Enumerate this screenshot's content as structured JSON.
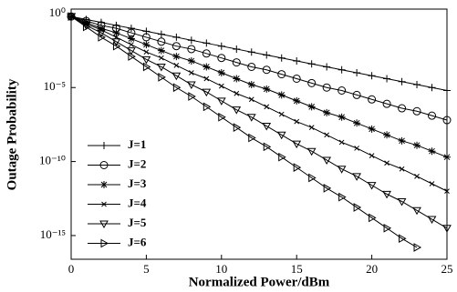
{
  "chart_data": {
    "type": "line",
    "xlabel": "Normalized Power/dBm",
    "ylabel": "Outage Probability",
    "log_y": true,
    "grid": false,
    "legend_loc": "lower left",
    "xlim": [
      0,
      25
    ],
    "xticks": [
      0,
      5,
      10,
      15,
      20,
      25
    ],
    "ylim": [
      2.5e-17,
      2
    ],
    "yticks": [
      {
        "value": 1,
        "label": "10⁰"
      },
      {
        "value": 1e-05,
        "label": "10⁻⁵"
      },
      {
        "value": 1e-10,
        "label": "10⁻¹⁰"
      },
      {
        "value": 1e-15,
        "label": "10⁻¹⁵"
      }
    ],
    "x": [
      0,
      1,
      2,
      3,
      4,
      5,
      6,
      7,
      8,
      9,
      10,
      11,
      12,
      13,
      14,
      15,
      16,
      17,
      18,
      19,
      20,
      21,
      22,
      23,
      24,
      25
    ],
    "series": [
      {
        "name": "J=1",
        "color": "#000000",
        "marker": "plus",
        "values": [
          0.631,
          0.398,
          0.251,
          0.158,
          0.1,
          0.0631,
          0.0398,
          0.0251,
          0.0158,
          0.01,
          0.00631,
          0.00398,
          0.00251,
          0.00158,
          0.001,
          0.000631,
          0.000398,
          0.000251,
          0.000158,
          0.0001,
          6.31e-05,
          3.98e-05,
          2.51e-05,
          1.58e-05,
          1e-05,
          6.31e-06
        ]
      },
      {
        "name": "J=2",
        "color": "#000000",
        "marker": "circle",
        "values": [
          0.631,
          0.316,
          0.158,
          0.1,
          0.0501,
          0.0251,
          0.0126,
          0.00631,
          0.00398,
          0.002,
          0.001,
          0.000501,
          0.000251,
          0.000158,
          7.94e-05,
          3.98e-05,
          2e-05,
          1e-05,
          6.31e-06,
          3.16e-06,
          1.58e-06,
          7.94e-07,
          3.98e-07,
          2.51e-07,
          1.26e-07,
          6.31e-08
        ]
      },
      {
        "name": "J=3",
        "color": "#000000",
        "marker": "star",
        "values": [
          0.631,
          0.251,
          0.1,
          0.0501,
          0.02,
          0.00794,
          0.00316,
          0.00126,
          0.000631,
          0.000251,
          0.0001,
          3.98e-05,
          1.58e-05,
          7.94e-06,
          3.16e-06,
          1.26e-06,
          5.01e-07,
          2e-07,
          1e-07,
          3.98e-08,
          1.58e-08,
          6.31e-09,
          2.51e-09,
          1.26e-09,
          5.01e-10,
          2e-10
        ]
      },
      {
        "name": "J=4",
        "color": "#000000",
        "marker": "x",
        "values": [
          0.631,
          0.2,
          0.0794,
          0.0251,
          0.00794,
          0.00251,
          0.001,
          0.000316,
          0.0001,
          3.98e-05,
          1.26e-05,
          3.98e-06,
          1.58e-06,
          5.01e-07,
          1.58e-07,
          5.01e-08,
          2e-08,
          6.31e-09,
          2e-09,
          7.94e-10,
          2.51e-10,
          7.94e-11,
          3.16e-11,
          1e-11,
          3.16e-12,
          1e-12
        ]
      },
      {
        "name": "J=5",
        "color": "#000000",
        "marker": "tri-down",
        "values": [
          0.631,
          0.158,
          0.0501,
          0.0126,
          0.00316,
          0.000794,
          0.000251,
          6.31e-05,
          1.58e-05,
          5.01e-06,
          1.26e-06,
          3.16e-07,
          1e-07,
          2.51e-08,
          6.31e-09,
          1.58e-09,
          5.01e-10,
          1.26e-10,
          3.16e-11,
          1e-11,
          2.51e-12,
          6.31e-13,
          2e-13,
          5.01e-14,
          1.26e-14,
          3.16e-15
        ]
      },
      {
        "name": "J=6",
        "color": "#000000",
        "marker": "tri-right",
        "values": [
          0.631,
          0.126,
          0.0251,
          0.00631,
          0.00126,
          0.000251,
          5.01e-05,
          1e-05,
          2.51e-06,
          5.01e-07,
          1e-07,
          2e-08,
          3.98e-09,
          1e-09,
          2e-10,
          3.98e-11,
          7.94e-12,
          1.58e-12,
          3.98e-13,
          7.94e-14,
          1.58e-14,
          3.16e-15,
          6.31e-16,
          1.58e-16,
          null,
          null
        ]
      }
    ]
  }
}
